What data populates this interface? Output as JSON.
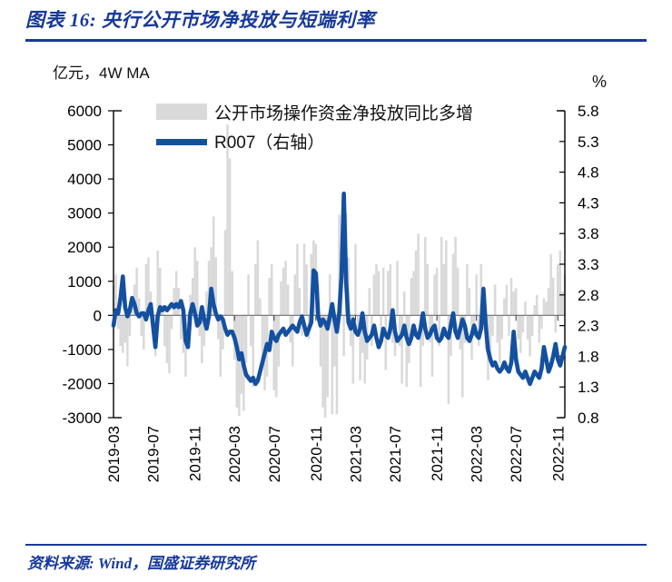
{
  "title": "图表 16:  央行公开市场净投放与短端利率",
  "footer": {
    "source": "资料来源: Wind，国盛证券研究所"
  },
  "colors": {
    "navy": "#17399B",
    "line_blue": "#1450A0",
    "bar_gray": "#D9D9D9",
    "zero_line": "#6E6E6E",
    "axis": "#000000"
  },
  "chart_data": {
    "type": "bar",
    "note": "combo chart: weekly bars (left axis) + line (right axis)",
    "left_axis": {
      "label": "亿元，4W MA",
      "min": -3000,
      "max": 6000,
      "step": 1000,
      "ticks": [
        "6000",
        "5000",
        "4000",
        "3000",
        "2000",
        "1000",
        "0",
        "-1000",
        "-2000",
        "-3000"
      ]
    },
    "right_axis": {
      "label": "%",
      "min": 0.8,
      "max": 5.8,
      "step": 0.5,
      "ticks": [
        "5.8",
        "5.3",
        "4.8",
        "4.3",
        "3.8",
        "3.3",
        "2.8",
        "2.3",
        "1.8",
        "1.3",
        "0.8"
      ]
    },
    "x_labels": [
      "2019-03",
      "2019-07",
      "2019-11",
      "2020-03",
      "2020-07",
      "2020-11",
      "2021-03",
      "2021-07",
      "2021-11",
      "2022-03",
      "2022-07",
      "2022-11"
    ],
    "x_label_indices": [
      0,
      17,
      35,
      52,
      69,
      87,
      104,
      121,
      139,
      156,
      173,
      191
    ],
    "legend_position": "top-inside",
    "grid": false,
    "series": [
      {
        "name": "公开市场操作资金净投放同比多增",
        "type": "bar",
        "axis": "left",
        "color": "#D9D9D9",
        "values": [
          900,
          1200,
          -400,
          -900,
          -1100,
          -800,
          -1500,
          -600,
          400,
          900,
          1400,
          500,
          -600,
          -1000,
          1500,
          1700,
          700,
          -600,
          -1200,
          1900,
          1400,
          300,
          -900,
          -1400,
          -1700,
          -400,
          800,
          1300,
          800,
          -700,
          -1100,
          -1800,
          -700,
          600,
          1100,
          2000,
          1600,
          -600,
          -1400,
          -900,
          700,
          1600,
          2000,
          2900,
          1700,
          -700,
          -1800,
          -1000,
          2500,
          5600,
          4600,
          1300,
          -1300,
          -2700,
          -2950,
          -2300,
          -2800,
          -1400,
          1200,
          -900,
          -2100,
          1500,
          2200,
          500,
          -1300,
          -2200,
          -1800,
          1100,
          1500,
          -2200,
          -2400,
          -1500,
          1000,
          1400,
          1600,
          900,
          -800,
          -1500,
          1200,
          2100,
          800,
          -600,
          2100,
          1500,
          -700,
          1800,
          2200,
          2100,
          900,
          -1500,
          -2700,
          -3000,
          -2400,
          1200,
          -2900,
          -1500,
          -2900,
          2950,
          2300,
          -1200,
          3000,
          1700,
          -900,
          -2000,
          2100,
          -600,
          -1900,
          -1100,
          -2000,
          -1300,
          800,
          -900,
          1200,
          1500,
          1300,
          -700,
          1400,
          -1600,
          1300,
          1500,
          -800,
          -1200,
          1600,
          -900,
          -2000,
          700,
          -2100,
          -1400,
          1100,
          1300,
          1900,
          2400,
          -2100,
          -900,
          2300,
          1500,
          -800,
          -1800,
          1200,
          1400,
          -900,
          2300,
          1500,
          2200,
          -2600,
          -1200,
          1800,
          2300,
          1400,
          -1000,
          -2400,
          -800,
          1500,
          800,
          -1300,
          -500,
          1200,
          -900,
          1500,
          800,
          -1000,
          -1900,
          -1200,
          -600,
          900,
          -800,
          -1400,
          -700,
          500,
          900,
          -600,
          1100,
          700,
          800,
          -700,
          -1100,
          -500,
          400,
          -700,
          -1200,
          -600,
          300,
          600,
          -800,
          -400,
          500,
          400,
          800,
          1800,
          1100,
          -500,
          1500,
          1900,
          700,
          1200
        ]
      },
      {
        "name": "R007（右轴）",
        "type": "line",
        "axis": "right",
        "color": "#1450A0",
        "values": [
          2.3,
          2.55,
          2.5,
          2.75,
          3.1,
          2.6,
          2.45,
          2.55,
          2.75,
          2.65,
          2.5,
          2.45,
          2.5,
          2.5,
          2.4,
          2.55,
          2.65,
          2.3,
          1.95,
          2.45,
          2.6,
          2.55,
          2.6,
          2.55,
          2.6,
          2.65,
          2.6,
          2.65,
          2.6,
          2.7,
          2.55,
          2.05,
          1.95,
          2.5,
          2.65,
          2.5,
          2.3,
          2.35,
          2.6,
          2.4,
          2.25,
          2.45,
          2.9,
          2.65,
          2.5,
          2.4,
          2.45,
          2.4,
          2.25,
          2.15,
          2.2,
          2.2,
          2.1,
          1.95,
          1.75,
          1.85,
          1.65,
          1.5,
          1.45,
          1.4,
          1.45,
          1.35,
          1.4,
          1.55,
          1.7,
          1.85,
          2.0,
          1.9,
          2.2,
          2.1,
          2.05,
          2.15,
          2.2,
          2.25,
          2.15,
          2.2,
          2.25,
          2.3,
          2.25,
          2.2,
          2.35,
          2.45,
          2.3,
          2.15,
          2.25,
          2.35,
          3.2,
          3.15,
          2.45,
          2.3,
          2.4,
          2.35,
          2.25,
          2.45,
          2.65,
          2.4,
          2.2,
          2.5,
          3.1,
          4.45,
          3.0,
          2.35,
          2.25,
          2.4,
          2.2,
          2.15,
          2.25,
          2.5,
          2.2,
          2.05,
          2.1,
          2.15,
          2.3,
          2.1,
          1.95,
          2.05,
          2.25,
          2.15,
          2.1,
          2.25,
          2.55,
          2.2,
          2.05,
          2.1,
          2.15,
          2.3,
          2.1,
          2.0,
          2.1,
          2.3,
          2.15,
          2.1,
          2.25,
          2.5,
          2.25,
          2.1,
          2.15,
          2.25,
          2.3,
          2.1,
          2.05,
          2.1,
          2.25,
          2.15,
          2.1,
          2.3,
          2.5,
          2.2,
          2.1,
          2.25,
          2.4,
          2.3,
          2.1,
          2.05,
          2.15,
          2.3,
          2.15,
          2.1,
          2.25,
          2.9,
          2.3,
          1.9,
          1.75,
          1.65,
          1.7,
          1.6,
          1.55,
          1.6,
          1.7,
          1.6,
          1.55,
          1.7,
          2.2,
          1.75,
          1.55,
          1.5,
          1.45,
          1.55,
          1.45,
          1.35,
          1.45,
          1.55,
          1.5,
          1.45,
          1.6,
          1.95,
          1.75,
          1.55,
          1.65,
          1.8,
          2.0,
          1.75,
          1.65,
          1.8,
          1.95
        ]
      }
    ]
  }
}
